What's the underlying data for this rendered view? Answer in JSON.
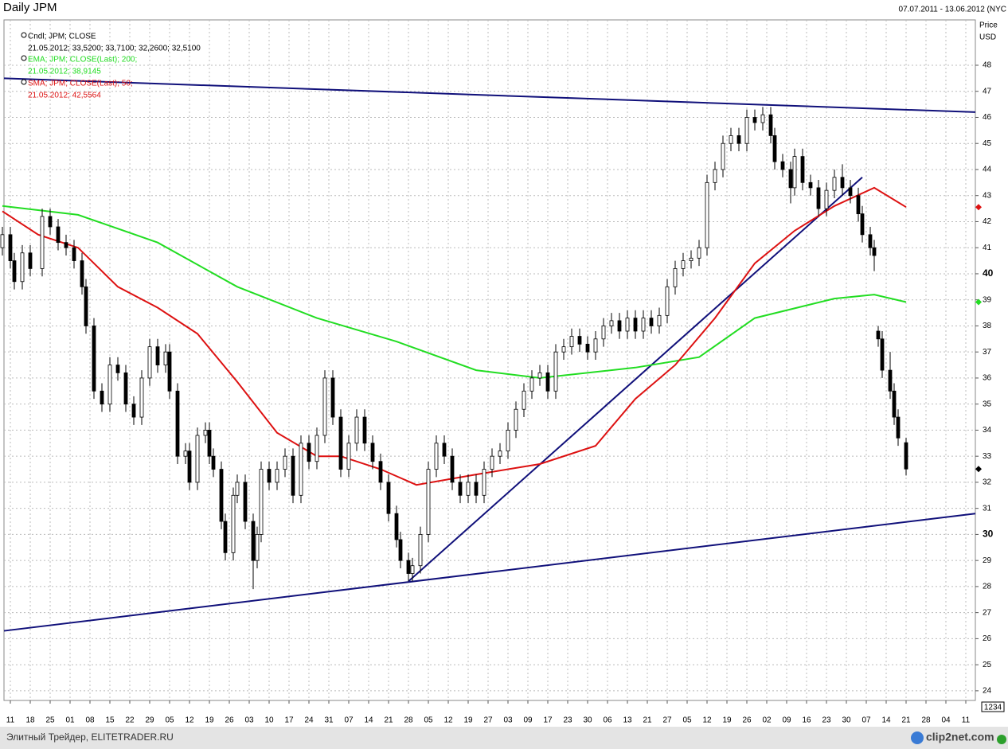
{
  "chart_data": {
    "type": "candlestick",
    "title": "Daily JPM",
    "subtitle": "07.07.2011 - 13.06.2012 (NYC",
    "y_axis_label": "Price",
    "y_axis_unit": "USD",
    "candles": {
      "name": "Cndl; JPM; CLOSE",
      "detail": "21.05.2012; 33,5200; 33,7100; 32,2600; 32,5100",
      "up_color": "#ffffff",
      "down_color": "#000000",
      "marker_color": "#000000"
    },
    "x": [
      0,
      2,
      3,
      5,
      7,
      10,
      12,
      14,
      16,
      18,
      20,
      21,
      23,
      25,
      27,
      29,
      31,
      33,
      35,
      37,
      39,
      41,
      42,
      44,
      46,
      47,
      49,
      51,
      52,
      53,
      55,
      56,
      58,
      59,
      61,
      63,
      64,
      65,
      67,
      69,
      71,
      73,
      75,
      77,
      79,
      81,
      83,
      85,
      87,
      89,
      91,
      93,
      95,
      97,
      99,
      100,
      102,
      103,
      105,
      107,
      109,
      111,
      113,
      115,
      117,
      119,
      121,
      123,
      125,
      127,
      129,
      131,
      133,
      135,
      137,
      139,
      141,
      143,
      145,
      147,
      149,
      151,
      153,
      155,
      157,
      159,
      161,
      163,
      165,
      167,
      169,
      171,
      173,
      175,
      177,
      179,
      181,
      183,
      185,
      187,
      189,
      191,
      193,
      194,
      196,
      198,
      199,
      201,
      203,
      205,
      207,
      209,
      211,
      213,
      215,
      216,
      218,
      219,
      220,
      221,
      223,
      224,
      225,
      227
    ],
    "open": [
      41.0,
      41.5,
      40.5,
      39.7,
      40.8,
      40.2,
      42.2,
      41.8,
      41.2,
      41.0,
      40.5,
      39.5,
      38.0,
      35.5,
      35.0,
      36.5,
      36.2,
      35.0,
      34.5,
      36.0,
      37.2,
      36.5,
      37.0,
      35.5,
      33.0,
      33.2,
      32.0,
      33.8,
      34.0,
      33.0,
      32.5,
      30.5,
      29.3,
      31.5,
      32.0,
      30.5,
      29.0,
      30.0,
      32.5,
      32.0,
      32.5,
      33.0,
      31.5,
      33.5,
      32.8,
      33.8,
      36.0,
      34.5,
      32.5,
      33.5,
      34.5,
      33.5,
      32.8,
      32.0,
      30.8,
      29.8,
      29.0,
      28.5,
      28.8,
      30.0,
      32.5,
      33.5,
      33.0,
      32.0,
      31.5,
      32.0,
      31.5,
      32.5,
      33.0,
      33.2,
      34.0,
      34.8,
      35.5,
      36.0,
      36.2,
      35.5,
      37.0,
      37.2,
      37.6,
      37.3,
      37.0,
      37.5,
      38.0,
      38.2,
      37.8,
      38.3,
      37.8,
      38.3,
      38.0,
      38.4,
      39.5,
      40.2,
      40.5,
      40.6,
      41.0,
      43.5,
      44.0,
      45.0,
      45.3,
      45.0,
      46.0,
      45.8,
      46.1,
      45.3,
      44.3,
      44.0,
      43.3,
      44.5,
      43.5,
      43.3,
      42.5,
      43.2,
      43.7,
      43.3,
      43.0,
      42.3,
      41.5,
      41.0,
      37.8,
      37.5,
      36.3,
      35.5,
      34.5,
      33.52
    ],
    "high": [
      41.8,
      41.8,
      40.8,
      41.1,
      41.1,
      42.5,
      42.5,
      42.1,
      41.5,
      41.3,
      40.8,
      39.8,
      38.3,
      35.8,
      36.8,
      36.8,
      36.5,
      35.3,
      36.3,
      37.5,
      37.5,
      37.3,
      37.3,
      35.8,
      33.5,
      33.5,
      34.1,
      34.3,
      34.3,
      33.3,
      32.8,
      30.8,
      31.8,
      32.3,
      32.3,
      30.8,
      30.3,
      32.8,
      32.8,
      32.8,
      33.3,
      33.3,
      33.8,
      33.8,
      34.1,
      36.3,
      36.3,
      34.8,
      33.8,
      34.8,
      34.8,
      33.8,
      33.1,
      32.3,
      31.1,
      30.1,
      29.3,
      29.1,
      30.3,
      32.8,
      33.8,
      33.8,
      33.3,
      32.3,
      32.3,
      32.3,
      32.8,
      33.3,
      33.5,
      34.3,
      35.1,
      35.8,
      36.3,
      36.5,
      36.5,
      37.3,
      37.5,
      37.9,
      37.9,
      37.6,
      37.8,
      38.3,
      38.5,
      38.5,
      38.6,
      38.6,
      38.6,
      38.6,
      38.7,
      39.8,
      40.5,
      40.8,
      40.9,
      41.3,
      43.8,
      44.3,
      45.3,
      45.6,
      45.6,
      46.3,
      46.3,
      46.4,
      46.4,
      45.6,
      44.6,
      44.3,
      44.8,
      44.8,
      43.8,
      43.6,
      43.5,
      44.0,
      44.2,
      43.6,
      43.3,
      42.6,
      41.8,
      41.3,
      38.0,
      37.8,
      37.0,
      35.8,
      34.8,
      33.71
    ],
    "low": [
      40.7,
      40.2,
      39.4,
      39.4,
      39.9,
      39.9,
      41.5,
      40.9,
      40.7,
      40.2,
      39.2,
      37.7,
      35.2,
      34.7,
      34.7,
      35.9,
      34.7,
      34.2,
      34.2,
      35.7,
      36.2,
      36.2,
      35.2,
      32.7,
      32.7,
      31.7,
      31.7,
      33.5,
      32.7,
      32.2,
      30.2,
      29.0,
      29.0,
      31.2,
      30.2,
      27.9,
      28.7,
      29.7,
      31.7,
      31.7,
      32.2,
      31.2,
      31.2,
      32.5,
      32.5,
      33.5,
      34.2,
      32.2,
      32.2,
      33.2,
      33.2,
      32.5,
      31.7,
      30.5,
      29.5,
      28.7,
      28.2,
      28.2,
      28.5,
      29.7,
      32.2,
      32.7,
      31.7,
      31.2,
      31.2,
      31.2,
      31.2,
      32.2,
      32.7,
      32.9,
      33.7,
      34.5,
      35.2,
      35.7,
      35.2,
      35.2,
      36.7,
      36.9,
      37.0,
      36.7,
      36.7,
      37.2,
      37.7,
      37.5,
      37.5,
      37.5,
      37.5,
      37.7,
      37.7,
      38.1,
      39.2,
      39.9,
      40.2,
      40.3,
      40.7,
      43.2,
      43.7,
      44.7,
      44.7,
      44.7,
      45.5,
      45.5,
      45.0,
      44.0,
      43.7,
      42.7,
      43.0,
      43.2,
      43.0,
      42.2,
      42.2,
      42.9,
      43.0,
      42.7,
      42.0,
      41.2,
      40.7,
      40.1,
      37.2,
      36.0,
      35.2,
      34.2,
      33.4,
      32.26
    ],
    "close": [
      41.5,
      40.5,
      39.7,
      40.8,
      40.2,
      42.2,
      41.8,
      41.2,
      41.0,
      40.5,
      39.5,
      38.0,
      35.5,
      35.0,
      36.5,
      36.2,
      35.0,
      34.5,
      36.0,
      37.2,
      36.5,
      37.0,
      35.5,
      33.0,
      33.2,
      32.0,
      33.8,
      34.0,
      33.0,
      32.5,
      30.5,
      29.3,
      31.5,
      32.0,
      30.5,
      29.0,
      30.0,
      32.5,
      32.0,
      32.5,
      33.0,
      31.5,
      33.5,
      32.8,
      33.8,
      36.0,
      34.5,
      32.5,
      33.5,
      34.5,
      33.5,
      32.8,
      32.0,
      30.8,
      29.8,
      29.0,
      28.5,
      28.8,
      30.0,
      32.5,
      33.5,
      33.0,
      32.0,
      31.5,
      32.0,
      31.5,
      32.5,
      33.0,
      33.2,
      34.0,
      34.8,
      35.5,
      36.0,
      36.2,
      35.5,
      37.0,
      37.2,
      37.6,
      37.3,
      37.0,
      37.5,
      38.0,
      38.2,
      37.8,
      38.3,
      37.8,
      38.3,
      38.0,
      38.4,
      39.5,
      40.2,
      40.5,
      40.6,
      41.0,
      43.5,
      44.0,
      45.0,
      45.3,
      45.0,
      46.0,
      45.8,
      46.1,
      45.3,
      44.3,
      44.0,
      43.3,
      44.5,
      43.5,
      43.3,
      42.5,
      43.2,
      43.7,
      43.3,
      43.0,
      42.3,
      41.5,
      41.0,
      40.7,
      37.5,
      36.3,
      35.5,
      34.5,
      33.7,
      32.51
    ],
    "series": [
      {
        "name": "EMA; JPM; CLOSE(Last);  200;",
        "detail": "21.05.2012; 38,9145",
        "color": "#22dd22",
        "x": [
          0,
          19,
          39,
          59,
          79,
          99,
          119,
          135,
          159,
          175,
          189,
          209,
          219,
          227
        ],
        "values": [
          42.6,
          42.26,
          41.2,
          39.5,
          38.3,
          37.4,
          36.3,
          36.0,
          36.4,
          36.8,
          38.3,
          39.05,
          39.2,
          38.9145
        ]
      },
      {
        "name": "SMA; JPM; CLOSE(Last);  50;",
        "detail": "21.05.2012; 42,5564",
        "color": "#dd1111",
        "x": [
          0,
          9,
          19,
          29,
          39,
          49,
          59,
          69,
          79,
          85,
          95,
          104,
          119,
          135,
          149,
          159,
          169,
          179,
          189,
          199,
          209,
          219,
          227
        ],
        "values": [
          42.4,
          41.5,
          41.0,
          39.5,
          38.7,
          37.7,
          35.85,
          33.9,
          33.0,
          33.0,
          32.5,
          31.9,
          32.3,
          32.7,
          33.4,
          35.2,
          36.5,
          38.3,
          40.4,
          41.65,
          42.6,
          43.3,
          42.5564
        ]
      }
    ],
    "trendlines": [
      {
        "color": "#10107a",
        "points": [
          [
            0.4,
            47.5
          ],
          [
            244.4,
            46.2
          ]
        ]
      },
      {
        "color": "#10107a",
        "points": [
          [
            0.4,
            26.3
          ],
          [
            244.4,
            30.8
          ]
        ]
      },
      {
        "color": "#10107a",
        "points": [
          [
            102,
            28.2
          ],
          [
            216,
            43.7
          ]
        ]
      }
    ],
    "xlim": [
      0.4,
      244.4
    ],
    "xticks": [
      {
        "value": 2,
        "label": "11"
      },
      {
        "value": 7,
        "label": "18"
      },
      {
        "value": 12,
        "label": "25"
      },
      {
        "value": 17,
        "label": "01"
      },
      {
        "value": 22,
        "label": "08"
      },
      {
        "value": 27,
        "label": "15"
      },
      {
        "value": 32,
        "label": "22"
      },
      {
        "value": 37,
        "label": "29"
      },
      {
        "value": 42,
        "label": "05"
      },
      {
        "value": 47,
        "label": "12"
      },
      {
        "value": 52,
        "label": "19"
      },
      {
        "value": 57,
        "label": "26"
      },
      {
        "value": 62,
        "label": "03"
      },
      {
        "value": 67,
        "label": "10"
      },
      {
        "value": 72,
        "label": "17"
      },
      {
        "value": 77,
        "label": "24"
      },
      {
        "value": 82,
        "label": "31"
      },
      {
        "value": 87,
        "label": "07"
      },
      {
        "value": 92,
        "label": "14"
      },
      {
        "value": 97,
        "label": "21"
      },
      {
        "value": 102,
        "label": "28"
      },
      {
        "value": 107,
        "label": "05"
      },
      {
        "value": 112,
        "label": "12"
      },
      {
        "value": 117,
        "label": "19"
      },
      {
        "value": 122,
        "label": "27"
      },
      {
        "value": 127,
        "label": "03"
      },
      {
        "value": 132,
        "label": "09"
      },
      {
        "value": 137,
        "label": "17"
      },
      {
        "value": 142,
        "label": "23"
      },
      {
        "value": 147,
        "label": "30"
      },
      {
        "value": 152,
        "label": "06"
      },
      {
        "value": 157,
        "label": "13"
      },
      {
        "value": 162,
        "label": "21"
      },
      {
        "value": 167,
        "label": "27"
      },
      {
        "value": 172,
        "label": "05"
      },
      {
        "value": 177,
        "label": "12"
      },
      {
        "value": 182,
        "label": "19"
      },
      {
        "value": 187,
        "label": "26"
      },
      {
        "value": 192,
        "label": "02"
      },
      {
        "value": 197,
        "label": "09"
      },
      {
        "value": 202,
        "label": "16"
      },
      {
        "value": 207,
        "label": "23"
      },
      {
        "value": 212,
        "label": "30"
      },
      {
        "value": 217,
        "label": "07"
      },
      {
        "value": 222,
        "label": "14"
      },
      {
        "value": 227,
        "label": "21"
      },
      {
        "value": 232,
        "label": "28"
      },
      {
        "value": 237,
        "label": "04"
      },
      {
        "value": 242,
        "label": "11"
      }
    ],
    "ylim": [
      23.63,
      49.74
    ],
    "yticks": [
      24,
      25,
      26,
      27,
      28,
      29,
      30,
      31,
      32,
      33,
      34,
      35,
      36,
      37,
      38,
      39,
      40,
      41,
      42,
      43,
      44,
      45,
      46,
      47,
      48
    ],
    "grid": true
  },
  "footer": {
    "source": "Элитный Трейдер, ELITETRADER.RU",
    "watermark": "clip2net.com",
    "zoom_box": "1234"
  }
}
